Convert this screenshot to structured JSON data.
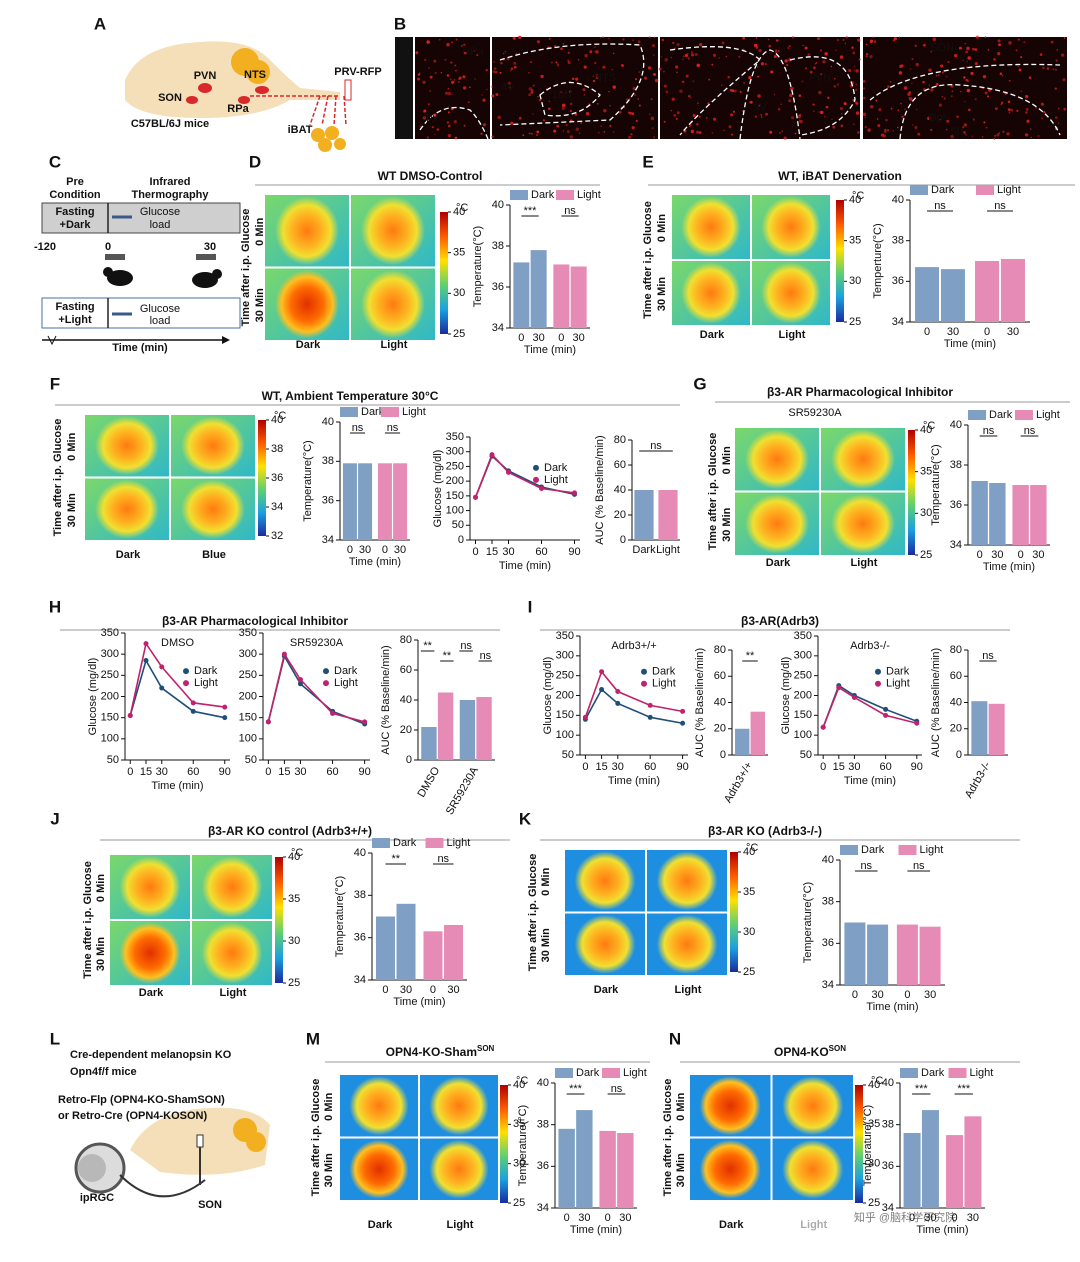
{
  "panels": [
    {
      "letter": "A",
      "labels": [
        "PVN",
        "NTS",
        "SON",
        "RPa",
        "PRV-RFP",
        "C57BL/6J mice",
        "iBAT"
      ]
    },
    {
      "letter": "B",
      "labels": [
        "RFP",
        "RPa",
        "py",
        "4V",
        "NTS",
        "10N",
        "3V",
        "PVN",
        "SON",
        "Opt",
        "50"
      ]
    },
    {
      "letter": "C",
      "labels": [
        "Pre",
        "Condition",
        "Infrared",
        "Thermography",
        "Fasting",
        "+Dark",
        "Glucose",
        "load",
        "-120",
        "0",
        "30",
        "Fasting",
        "+Light",
        "Glucose",
        "load",
        "Time (min)"
      ]
    },
    {
      "letter": "D",
      "title": "WT DMSO-Control",
      "rows": [
        "0 Min",
        "30 Min"
      ],
      "row_caption": "Time after i.p. Glucose",
      "columns": [
        "Dark",
        "Light"
      ],
      "colorbar": {
        "unit": "°C",
        "ticks": [
          40,
          35,
          30,
          25
        ]
      }
    },
    {
      "letter": "E",
      "title": "WT, iBAT Denervation",
      "rows": [
        "0 Min",
        "30 Min"
      ],
      "row_caption": "Time after i.p. Glucose",
      "columns": [
        "Dark",
        "Light"
      ],
      "colorbar": {
        "unit": "°C",
        "ticks": [
          40,
          35,
          30,
          25
        ]
      }
    },
    {
      "letter": "F",
      "title": "WT, Ambient Temperature 30°C",
      "rows": [
        "0 Min",
        "30 Min"
      ],
      "row_caption": "Time after i.p. Glucose",
      "columns": [
        "Dark",
        "Blue"
      ],
      "colorbar": {
        "unit": "°C",
        "ticks": [
          40,
          38,
          36,
          34,
          32
        ]
      }
    },
    {
      "letter": "G",
      "title": "β3-AR Pharmacological Inhibitor",
      "subtitle": "SR59230A",
      "rows": [
        "0 Min",
        "30 Min"
      ],
      "row_caption": "Time after i.p. Glucose",
      "columns": [
        "Dark",
        "Light"
      ],
      "colorbar": {
        "unit": "°C",
        "ticks": [
          40,
          35,
          30,
          25
        ]
      }
    },
    {
      "letter": "H",
      "title": "β3-AR Pharmacological Inhibitor"
    },
    {
      "letter": "I",
      "title": "β3-AR(Adrb3)"
    },
    {
      "letter": "J",
      "title": "β3-AR KO control (Adrb3+/+)",
      "rows": [
        "0 Min",
        "30 Min"
      ],
      "row_caption": "Time after i.p. Glucose",
      "columns": [
        "Dark",
        "Light"
      ],
      "colorbar": {
        "unit": "°C",
        "ticks": [
          40,
          35,
          30,
          25
        ]
      }
    },
    {
      "letter": "K",
      "title": "β3-AR KO (Adrb3-/-)",
      "rows": [
        "0 Min",
        "30 Min"
      ],
      "row_caption": "Time after i.p. Glucose",
      "columns": [
        "Dark",
        "Light"
      ],
      "colorbar": {
        "unit": "°C",
        "ticks": [
          40,
          35,
          30,
          25
        ]
      }
    },
    {
      "letter": "L",
      "labels": [
        "Cre-dependent melanopsin KO",
        "Opn4f/f mice",
        "Retro-Flp (OPN4-KO-ShamSON)",
        "or Retro-Cre (OPN4-KOSON)",
        "ipRGC",
        "SON"
      ]
    },
    {
      "letter": "M",
      "title": "OPN4-KO-Sham",
      "title_sup": "SON",
      "rows": [
        "0 Min",
        "30 Min"
      ],
      "row_caption": "Time after i.p. Glucose",
      "columns": [
        "Dark",
        "Light"
      ],
      "colorbar": {
        "unit": "°C",
        "ticks": [
          40,
          35,
          30,
          25
        ]
      }
    },
    {
      "letter": "N",
      "title": "OPN4-KO",
      "title_sup": "SON",
      "rows": [
        "0 Min",
        "30 Min"
      ],
      "row_caption": "Time after i.p. Glucose",
      "columns": [
        "Dark",
        "Light"
      ],
      "colorbar": {
        "unit": "°C",
        "ticks": [
          40,
          35,
          30,
          25
        ]
      }
    }
  ],
  "watermark": "知乎 @脑科学研究院",
  "chart_data": [
    {
      "type": "bar",
      "group_by": "series",
      "categories": [
        "0",
        "30"
      ],
      "series": [
        {
          "name": "Dark",
          "color": "#7fa0c4",
          "text_color": "#1f3f7a",
          "values": [
            37.2,
            37.8
          ]
        },
        {
          "name": "Light",
          "color": "#e68bb5",
          "text_color": "#c0226b",
          "values": [
            37.1,
            37.0
          ]
        }
      ],
      "ylim": [
        34,
        40
      ],
      "yticks": [
        34,
        36,
        38,
        40
      ],
      "ylabel": "Temperature(°C)",
      "xlabel": "Time (min)",
      "annotations": [
        "***",
        "ns"
      ],
      "legend": "top"
    },
    {
      "type": "bar",
      "group_by": "series",
      "categories": [
        "0",
        "30"
      ],
      "series": [
        {
          "name": "Dark",
          "color": "#7fa0c4",
          "text_color": "#1f3f7a",
          "values": [
            36.7,
            36.6
          ]
        },
        {
          "name": "Light",
          "color": "#e68bb5",
          "text_color": "#c0226b",
          "values": [
            37.0,
            37.1
          ]
        }
      ],
      "ylim": [
        34,
        40
      ],
      "yticks": [
        34,
        36,
        38,
        40
      ],
      "ylabel": "Temperture(°C)",
      "xlabel": "Time (min)",
      "annotations": [
        "ns",
        "ns"
      ],
      "legend": "top"
    },
    {
      "type": "bar",
      "group_by": "series",
      "categories": [
        "0",
        "30"
      ],
      "series": [
        {
          "name": "Dark",
          "color": "#7fa0c4",
          "text_color": "#1f3f7a",
          "values": [
            37.9,
            37.9
          ]
        },
        {
          "name": "Light",
          "color": "#e68bb5",
          "text_color": "#c0226b",
          "values": [
            37.9,
            37.9
          ]
        }
      ],
      "ylim": [
        34,
        40
      ],
      "yticks": [
        34,
        36,
        38,
        40
      ],
      "ylabel": "Temperature(°C)",
      "xlabel": "Time (min)",
      "annotations": [
        "ns",
        "ns"
      ],
      "legend": "top"
    },
    {
      "type": "line",
      "x": [
        0,
        15,
        30,
        60,
        90
      ],
      "xlim": [
        -5,
        95
      ],
      "xticks": [
        0,
        15,
        30,
        60,
        90
      ],
      "series": [
        {
          "name": "Dark",
          "color": "#1f4e79",
          "values": [
            145,
            285,
            235,
            180,
            155
          ]
        },
        {
          "name": "Light",
          "color": "#c0226b",
          "values": [
            145,
            290,
            230,
            175,
            160
          ]
        }
      ],
      "ylim": [
        0,
        350
      ],
      "yticks": [
        0,
        50,
        100,
        150,
        200,
        250,
        300,
        350
      ],
      "ylabel": "Glucose (mg/dl)",
      "xlabel": "Time (min)",
      "legend": "right"
    },
    {
      "type": "bar",
      "categories": [
        "Dark",
        "Light"
      ],
      "values": [
        40,
        40
      ],
      "colors": [
        "#7fa0c4",
        "#e68bb5"
      ],
      "ylim": [
        0,
        80
      ],
      "yticks": [
        0,
        20,
        40,
        60,
        80
      ],
      "ylabel": "AUC (% Baseline/min)",
      "annotations": [
        "ns"
      ]
    },
    {
      "type": "bar",
      "group_by": "series",
      "categories": [
        "0",
        "30"
      ],
      "series": [
        {
          "name": "Dark",
          "color": "#7fa0c4",
          "text_color": "#1f3f7a",
          "values": [
            37.2,
            37.1
          ]
        },
        {
          "name": "Light",
          "color": "#e68bb5",
          "text_color": "#c0226b",
          "values": [
            37.0,
            37.0
          ]
        }
      ],
      "ylim": [
        34,
        40
      ],
      "yticks": [
        34,
        36,
        38,
        40
      ],
      "ylabel": "Temperature(°C)",
      "xlabel": "Time (min)",
      "annotations": [
        "ns",
        "ns"
      ],
      "legend": "top"
    },
    {
      "type": "line",
      "subtitle": "DMSO",
      "x": [
        0,
        15,
        30,
        60,
        90
      ],
      "xlim": [
        -5,
        95
      ],
      "xticks": [
        0,
        15,
        30,
        60,
        90
      ],
      "series": [
        {
          "name": "Dark",
          "color": "#1f4e79",
          "values": [
            155,
            285,
            220,
            165,
            150
          ]
        },
        {
          "name": "Light",
          "color": "#c0226b",
          "values": [
            155,
            325,
            270,
            185,
            175
          ]
        }
      ],
      "ylim": [
        50,
        350
      ],
      "yticks": [
        50,
        100,
        150,
        200,
        250,
        300,
        350
      ],
      "ylabel": "Glucose (mg/dl)",
      "xlabel": "Time (min)",
      "legend": "right"
    },
    {
      "type": "line",
      "subtitle": "SR59230A",
      "x": [
        0,
        15,
        30,
        60,
        90
      ],
      "xlim": [
        -5,
        95
      ],
      "xticks": [
        0,
        15,
        30,
        60,
        90
      ],
      "series": [
        {
          "name": "Dark",
          "color": "#1f4e79",
          "values": [
            140,
            295,
            230,
            165,
            135
          ]
        },
        {
          "name": "Light",
          "color": "#c0226b",
          "values": [
            140,
            300,
            240,
            160,
            140
          ]
        }
      ],
      "ylim": [
        50,
        350
      ],
      "yticks": [
        50,
        100,
        150,
        200,
        250,
        300,
        350
      ],
      "legend": "right"
    },
    {
      "type": "bar",
      "group_by": "category",
      "xlabel_rotate": true,
      "categories": [
        "DMSO",
        "SR59230A"
      ],
      "series": [
        {
          "name": "Dark",
          "color": "#7fa0c4",
          "values": [
            22,
            40
          ]
        },
        {
          "name": "Light",
          "color": "#e68bb5",
          "values": [
            45,
            42
          ]
        }
      ],
      "ylim": [
        0,
        80
      ],
      "yticks": [
        0,
        20,
        40,
        60,
        80
      ],
      "ylabel": "AUC (% Baseline/min)",
      "annotations": [
        "**",
        "**",
        "ns",
        "ns"
      ]
    },
    {
      "type": "line",
      "subtitle": "Adrb3+/+",
      "x": [
        0,
        15,
        30,
        60,
        90
      ],
      "xlim": [
        -5,
        95
      ],
      "xticks": [
        0,
        15,
        30,
        60,
        90
      ],
      "series": [
        {
          "name": "Dark",
          "color": "#1f4e79",
          "values": [
            140,
            215,
            180,
            145,
            130
          ]
        },
        {
          "name": "Light",
          "color": "#c0226b",
          "values": [
            145,
            260,
            210,
            175,
            160
          ]
        }
      ],
      "ylim": [
        50,
        350
      ],
      "yticks": [
        50,
        100,
        150,
        200,
        250,
        300,
        350
      ],
      "ylabel": "Glucose (mg/dl)",
      "xlabel": "Time (min)",
      "legend": "right"
    },
    {
      "type": "bar",
      "group_by": "category",
      "xlabel_rotate": true,
      "categories": [
        "Adrb3+/+"
      ],
      "series": [
        {
          "name": "Dark",
          "color": "#7fa0c4",
          "values": [
            20
          ]
        },
        {
          "name": "Light",
          "color": "#e68bb5",
          "values": [
            33
          ]
        }
      ],
      "ylim": [
        0,
        80
      ],
      "yticks": [
        0,
        20,
        40,
        60,
        80
      ],
      "ylabel": "AUC (% Baseline/min)",
      "annotations": [
        "**"
      ]
    },
    {
      "type": "line",
      "subtitle": "Adrb3-/-",
      "x": [
        0,
        15,
        30,
        60,
        90
      ],
      "xlim": [
        -5,
        95
      ],
      "xticks": [
        0,
        15,
        30,
        60,
        90
      ],
      "series": [
        {
          "name": "Dark",
          "color": "#1f4e79",
          "values": [
            120,
            225,
            200,
            165,
            135
          ]
        },
        {
          "name": "Light",
          "color": "#c0226b",
          "values": [
            120,
            220,
            195,
            150,
            130
          ]
        }
      ],
      "ylim": [
        50,
        350
      ],
      "yticks": [
        50,
        100,
        150,
        200,
        250,
        300,
        350
      ],
      "ylabel": "Glucose (mg/dl)",
      "xlabel": "Time (min)",
      "legend": "right"
    },
    {
      "type": "bar",
      "group_by": "category",
      "xlabel_rotate": true,
      "categories": [
        "Adrb3-/-"
      ],
      "series": [
        {
          "name": "Dark",
          "color": "#7fa0c4",
          "values": [
            41
          ]
        },
        {
          "name": "Light",
          "color": "#e68bb5",
          "values": [
            39
          ]
        }
      ],
      "ylim": [
        0,
        80
      ],
      "yticks": [
        0,
        20,
        40,
        60,
        80
      ],
      "ylabel": "AUC (% Baseline/min)",
      "annotations": [
        "ns"
      ]
    },
    {
      "type": "bar",
      "group_by": "series",
      "categories": [
        "0",
        "30"
      ],
      "series": [
        {
          "name": "Dark",
          "color": "#7fa0c4",
          "text_color": "#1f3f7a",
          "values": [
            37.0,
            37.6
          ]
        },
        {
          "name": "Light",
          "color": "#e68bb5",
          "text_color": "#c0226b",
          "values": [
            36.3,
            36.6
          ]
        }
      ],
      "ylim": [
        34,
        40
      ],
      "yticks": [
        34,
        36,
        38,
        40
      ],
      "ylabel": "Temperature(°C)",
      "xlabel": "Time (min)",
      "annotations": [
        "**",
        "ns"
      ],
      "legend": "top"
    },
    {
      "type": "bar",
      "group_by": "series",
      "categories": [
        "0",
        "30"
      ],
      "series": [
        {
          "name": "Dark",
          "color": "#7fa0c4",
          "text_color": "#1f3f7a",
          "values": [
            37.0,
            36.9
          ]
        },
        {
          "name": "Light",
          "color": "#e68bb5",
          "text_color": "#c0226b",
          "values": [
            36.9,
            36.8
          ]
        }
      ],
      "ylim": [
        34,
        40
      ],
      "yticks": [
        34,
        36,
        38,
        40
      ],
      "ylabel": "Temperature(°C)",
      "xlabel": "Time (min)",
      "annotations": [
        "ns",
        "ns"
      ],
      "legend": "top"
    },
    {
      "type": "bar",
      "group_by": "series",
      "categories": [
        "0",
        "30"
      ],
      "series": [
        {
          "name": "Dark",
          "color": "#7fa0c4",
          "text_color": "#1f3f7a",
          "values": [
            37.8,
            38.7
          ]
        },
        {
          "name": "Light",
          "color": "#e68bb5",
          "text_color": "#c0226b",
          "values": [
            37.7,
            37.6
          ]
        }
      ],
      "ylim": [
        34,
        40
      ],
      "yticks": [
        34,
        36,
        38,
        40
      ],
      "ylabel": "Temperature(°C)",
      "xlabel": "Time (min)",
      "annotations": [
        "***",
        "ns"
      ],
      "legend": "top"
    },
    {
      "type": "bar",
      "group_by": "series",
      "categories": [
        "0",
        "30"
      ],
      "series": [
        {
          "name": "Dark",
          "color": "#7fa0c4",
          "text_color": "#1f3f7a",
          "values": [
            37.6,
            38.7
          ]
        },
        {
          "name": "Light",
          "color": "#e68bb5",
          "text_color": "#c0226b",
          "values": [
            37.5,
            38.4
          ]
        }
      ],
      "ylim": [
        34,
        40
      ],
      "yticks": [
        34,
        36,
        38,
        40
      ],
      "ylabel": "Temperature(°C)",
      "xlabel": "Time (min)",
      "annotations": [
        "***",
        "***"
      ],
      "legend": "top"
    }
  ]
}
